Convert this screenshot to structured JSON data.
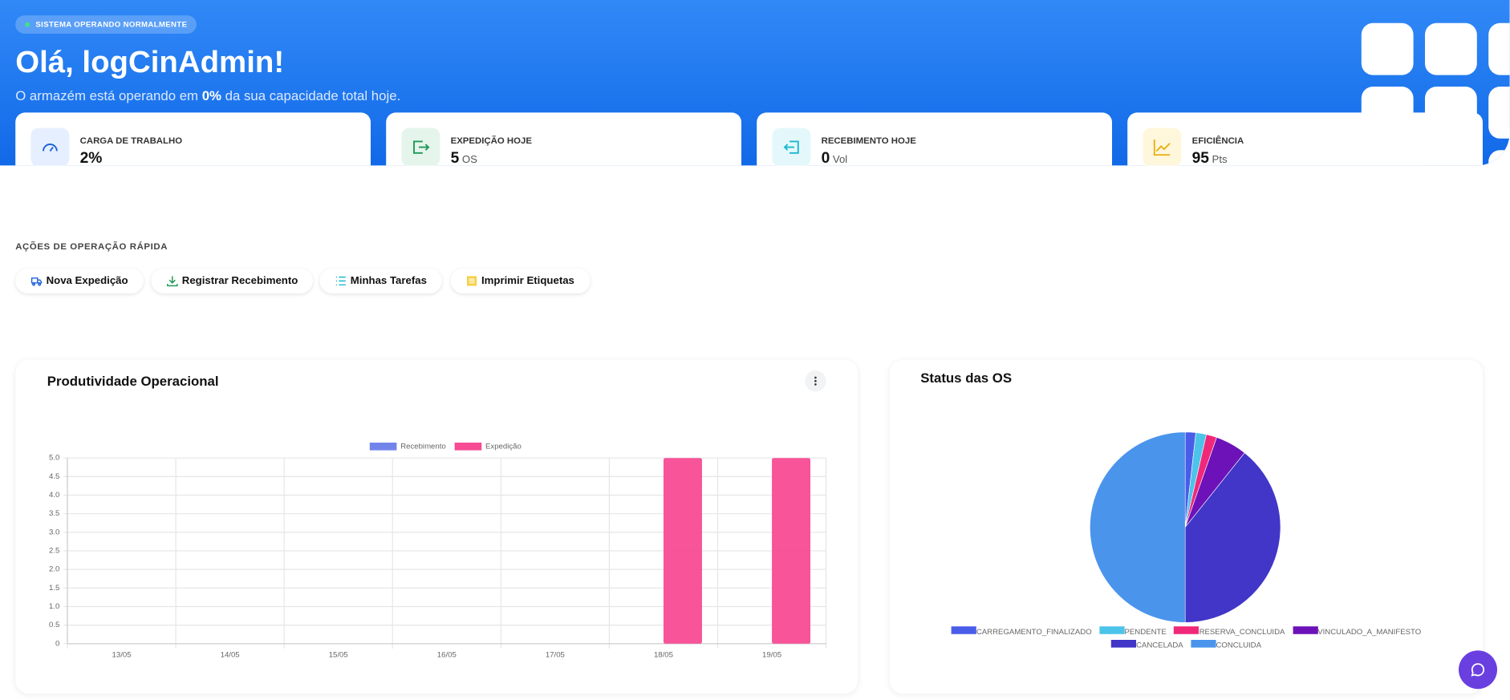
{
  "header": {
    "badge": "SISTEMA OPERANDO NORMALMENTE",
    "title": "Olá, logCinAdmin!",
    "subtitle": [
      "O armazém está operando em ",
      "0%",
      " da sua capacidade total hoje."
    ]
  },
  "kpis": [
    {
      "label": "CARGA DE TRABALHO",
      "value": "2%"
    },
    {
      "label": "EXPEDIÇÃO HOJE",
      "value": "5",
      "unit": "OS"
    },
    {
      "label": "RECEBIMENTO HOJE",
      "value": "0",
      "unit": "Vol"
    },
    {
      "label": "EFICIÊNCIA",
      "value": "95",
      "unit": "Pts"
    }
  ],
  "quick_actions": {
    "title": "AÇÕES DE OPERAÇÃO RÁPIDA",
    "buttons": [
      "Nova Expedição",
      "Registrar Recebimento",
      "Minhas Tarefas",
      "Imprimir Etiquetas"
    ]
  },
  "chart_data": [
    {
      "type": "bar",
      "title": "Produtividade Operacional",
      "categories": [
        "13/05",
        "14/05",
        "15/05",
        "16/05",
        "17/05",
        "18/05",
        "19/05"
      ],
      "series": [
        {
          "name": "Recebimento",
          "color": "#7283ea",
          "values": [
            0,
            0,
            0,
            0,
            0,
            0,
            0
          ]
        },
        {
          "name": "Expedição",
          "color": "#f74b94",
          "values": [
            0,
            0,
            0,
            0,
            0,
            5,
            5
          ]
        }
      ],
      "ylim": [
        0,
        5
      ],
      "yticks": [
        0,
        0.5,
        {
          "value": 1,
          "label": "1.0"
        },
        1.5,
        {
          "value": 2,
          "label": "2.0"
        },
        2.5,
        {
          "value": 3,
          "label": "3.0"
        },
        3.5,
        {
          "value": 4,
          "label": "4.0"
        },
        4.5,
        {
          "value": 5,
          "label": "5.0"
        }
      ],
      "grid": true,
      "legend": "top"
    },
    {
      "type": "pie",
      "title": "Status das OS",
      "categories": [
        "CARREGAMENTO_FINALIZADO",
        "PENDENTE",
        "RESERVA_CONCLUIDA",
        "VINCULADO_A_MANIFESTO",
        "CANCELADA",
        "CONCLUIDA"
      ],
      "values": [
        1,
        1,
        1,
        3,
        22,
        28
      ],
      "colors": [
        "#4a5de8",
        "#4cc4ea",
        "#f0287a",
        "#6c12b8",
        "#4136c8",
        "#4a94ec"
      ],
      "legend": "bottom"
    }
  ]
}
